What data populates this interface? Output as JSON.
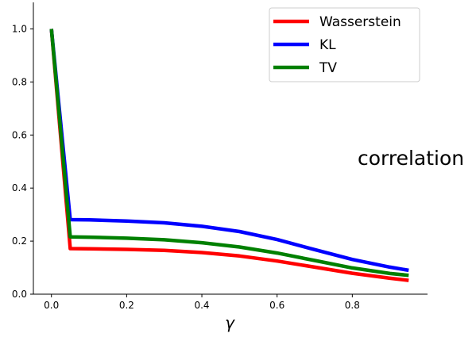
{
  "chart_data": {
    "type": "line",
    "title": "",
    "xlabel": "γ",
    "ylabel": "",
    "annotation": "correlation",
    "xlim": [
      -0.048,
      1.0
    ],
    "ylim": [
      0.0,
      1.1
    ],
    "xticks": [
      0.0,
      0.2,
      0.4,
      0.6,
      0.8
    ],
    "xtick_labels": [
      "0.0",
      "0.2",
      "0.4",
      "0.6",
      "0.8"
    ],
    "yticks": [
      0.0,
      0.2,
      0.4,
      0.6,
      0.8,
      1.0
    ],
    "ytick_labels": [
      "0.0",
      "0.2",
      "0.4",
      "0.6",
      "0.8",
      "1.0"
    ],
    "grid": false,
    "legend_position": "top-right",
    "x": [
      0.0,
      0.05,
      0.1,
      0.2,
      0.3,
      0.4,
      0.5,
      0.6,
      0.7,
      0.8,
      0.9,
      0.95
    ],
    "series": [
      {
        "name": "Wasserstein",
        "color": "#ff0000",
        "values": [
          1.0,
          0.172,
          0.171,
          0.169,
          0.165,
          0.157,
          0.144,
          0.125,
          0.102,
          0.079,
          0.06,
          0.052
        ]
      },
      {
        "name": "KL",
        "color": "#0000ff",
        "values": [
          1.0,
          0.281,
          0.28,
          0.276,
          0.269,
          0.256,
          0.236,
          0.206,
          0.168,
          0.131,
          0.102,
          0.09
        ]
      },
      {
        "name": "TV",
        "color": "#008000",
        "values": [
          1.0,
          0.216,
          0.215,
          0.211,
          0.205,
          0.194,
          0.178,
          0.155,
          0.127,
          0.099,
          0.078,
          0.071
        ]
      }
    ]
  }
}
